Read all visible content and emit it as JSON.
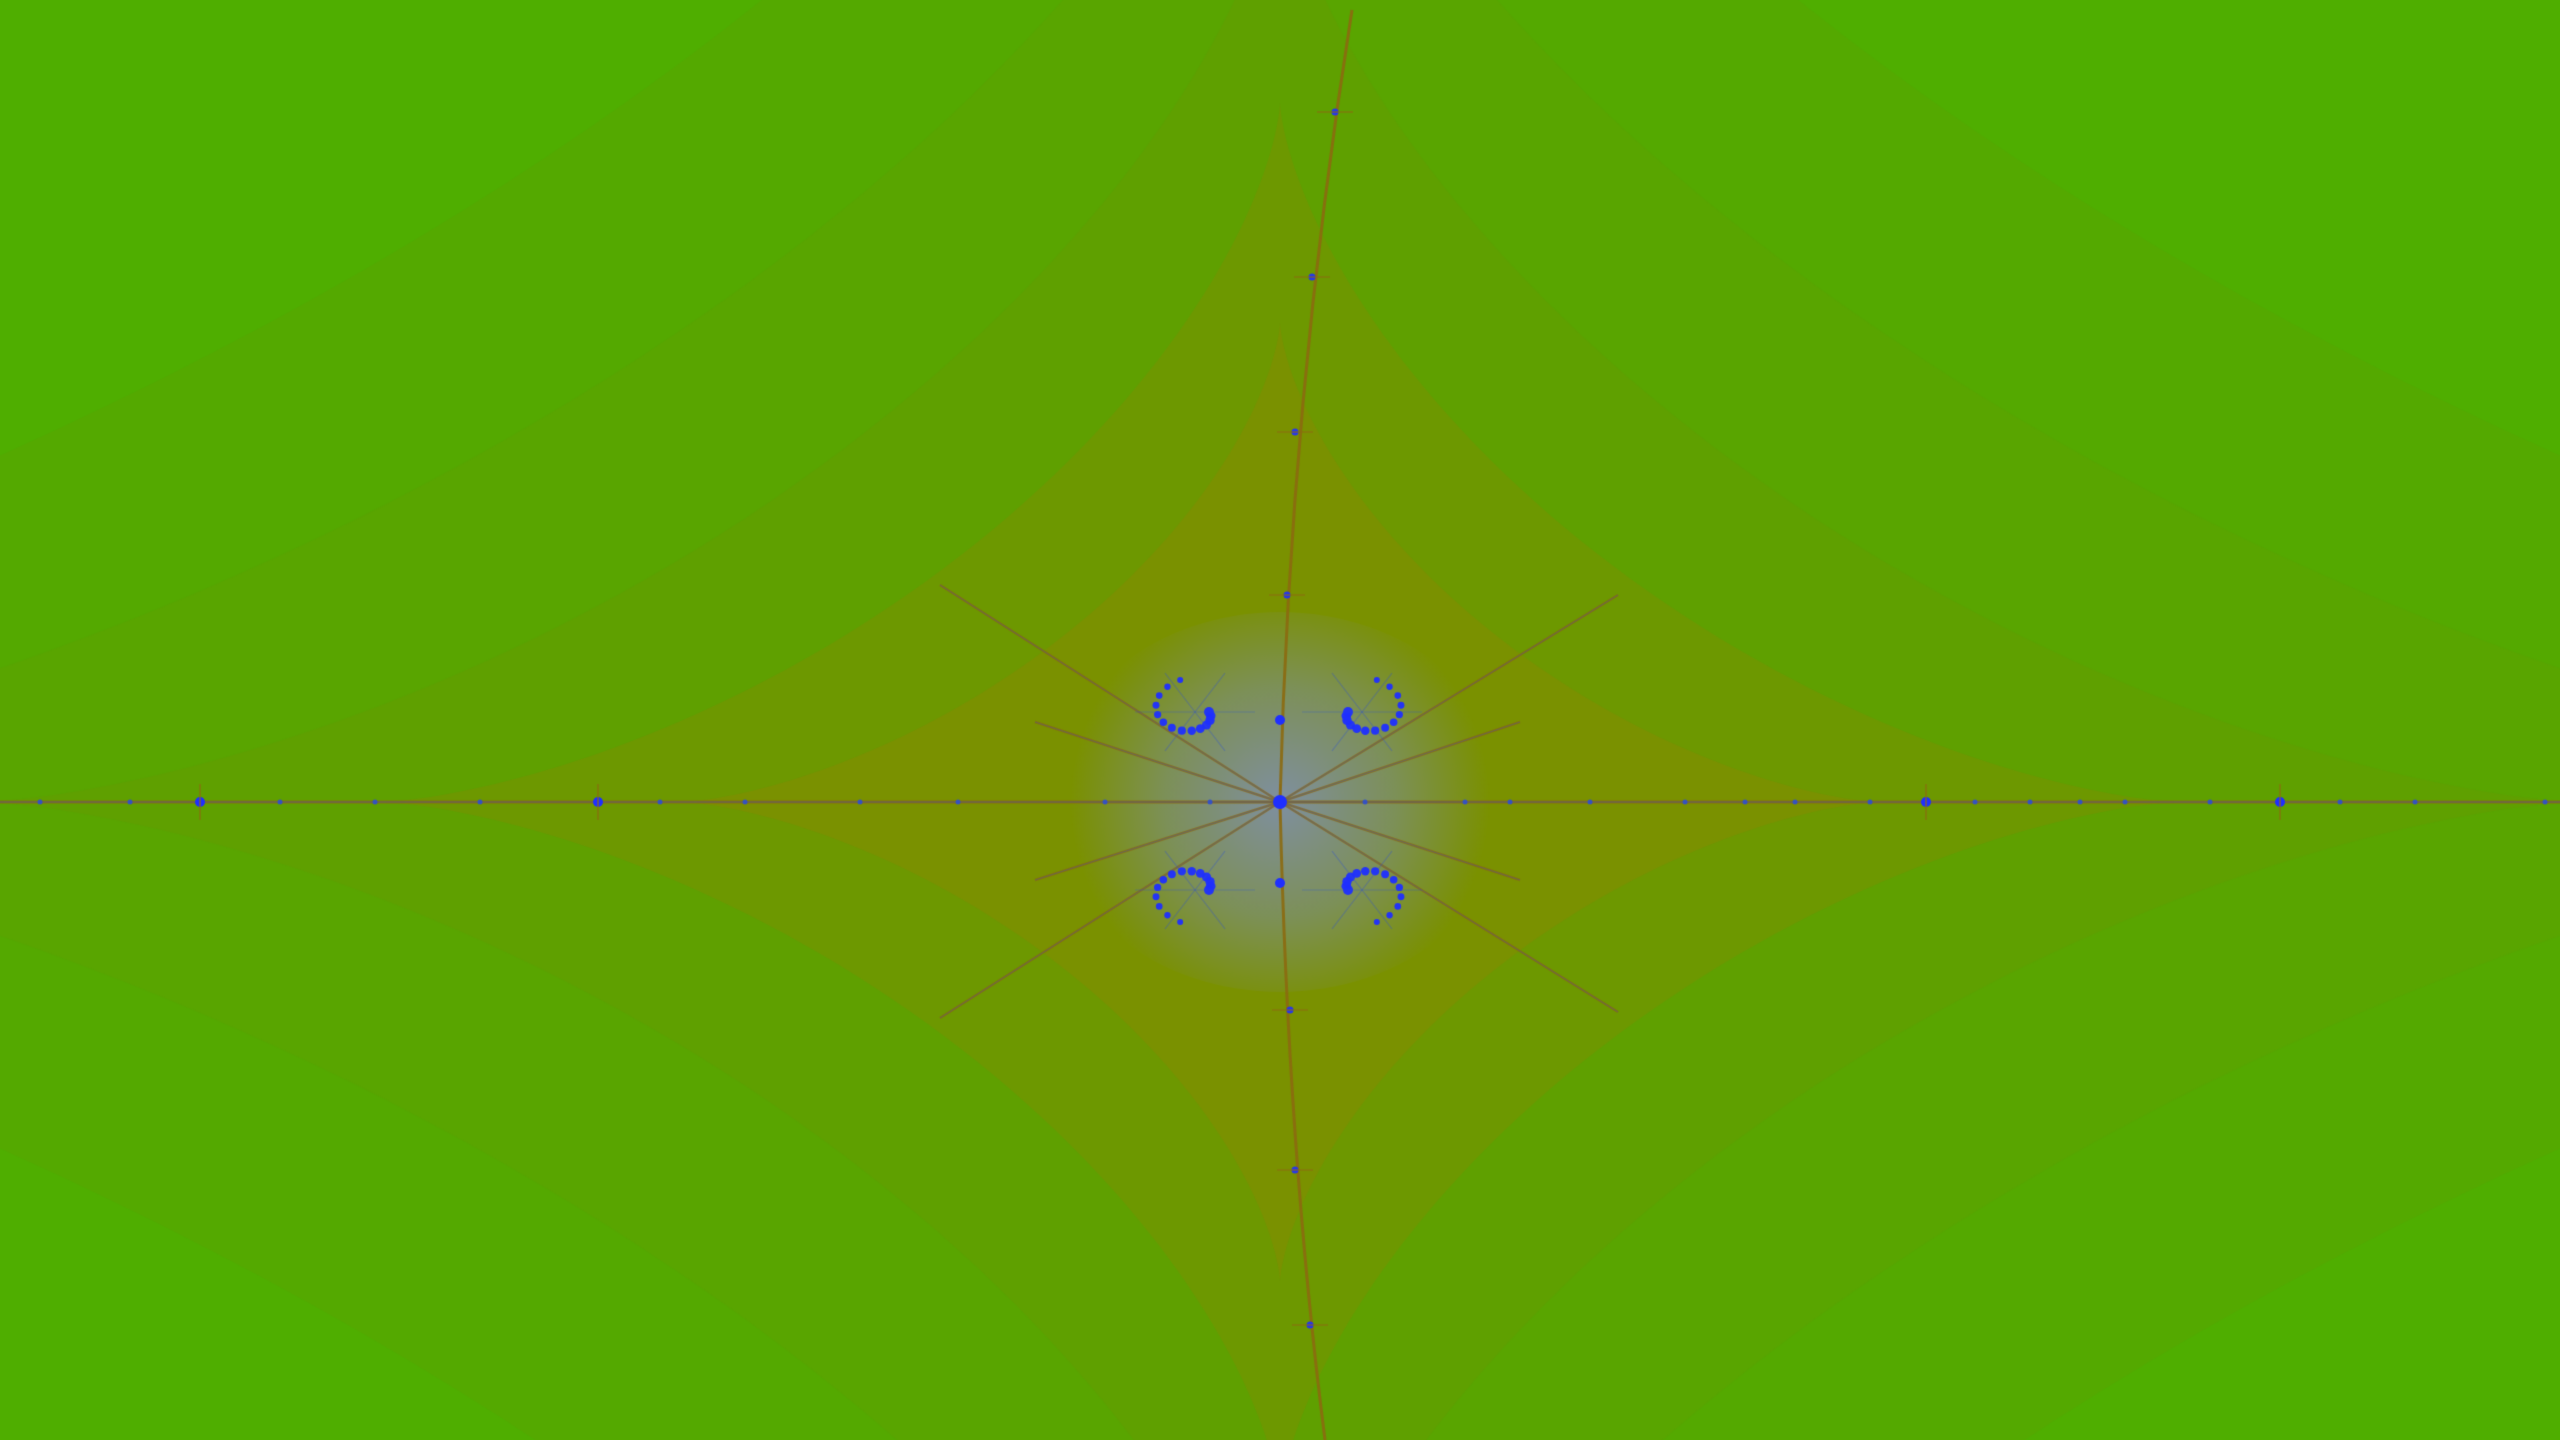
{
  "image": {
    "kind": "fractal-render",
    "palette": {
      "background_green": "#4fae00",
      "mid_olive": "#6e9400",
      "inner_olive": "#8a8a00",
      "core_slate": "#7f8fa0",
      "filament_brown": "#8c6a10",
      "filament_blue": "#2f4fd0",
      "node_blue": "#1f2fff"
    }
  }
}
